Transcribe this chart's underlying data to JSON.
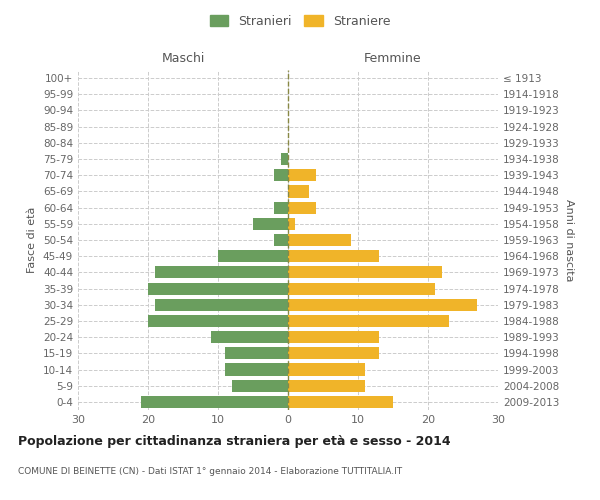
{
  "age_groups": [
    "100+",
    "95-99",
    "90-94",
    "85-89",
    "80-84",
    "75-79",
    "70-74",
    "65-69",
    "60-64",
    "55-59",
    "50-54",
    "45-49",
    "40-44",
    "35-39",
    "30-34",
    "25-29",
    "20-24",
    "15-19",
    "10-14",
    "5-9",
    "0-4"
  ],
  "birth_years": [
    "≤ 1913",
    "1914-1918",
    "1919-1923",
    "1924-1928",
    "1929-1933",
    "1934-1938",
    "1939-1943",
    "1944-1948",
    "1949-1953",
    "1954-1958",
    "1959-1963",
    "1964-1968",
    "1969-1973",
    "1974-1978",
    "1979-1983",
    "1984-1988",
    "1989-1993",
    "1994-1998",
    "1999-2003",
    "2004-2008",
    "2009-2013"
  ],
  "males": [
    0,
    0,
    0,
    0,
    0,
    1,
    2,
    0,
    2,
    5,
    2,
    10,
    19,
    20,
    19,
    20,
    11,
    9,
    9,
    8,
    21
  ],
  "females": [
    0,
    0,
    0,
    0,
    0,
    0,
    4,
    3,
    4,
    1,
    9,
    13,
    22,
    21,
    27,
    23,
    13,
    13,
    11,
    11,
    15
  ],
  "male_color": "#6a9e5e",
  "female_color": "#f0b429",
  "background_color": "#ffffff",
  "grid_color": "#cccccc",
  "title": "Popolazione per cittadinanza straniera per età e sesso - 2014",
  "subtitle": "COMUNE DI BEINETTE (CN) - Dati ISTAT 1° gennaio 2014 - Elaborazione TUTTITALIA.IT",
  "xlabel_left": "Maschi",
  "xlabel_right": "Femmine",
  "ylabel_left": "Fasce di età",
  "ylabel_right": "Anni di nascita",
  "legend_stranieri": "Stranieri",
  "legend_straniere": "Straniere",
  "xlim": 30
}
